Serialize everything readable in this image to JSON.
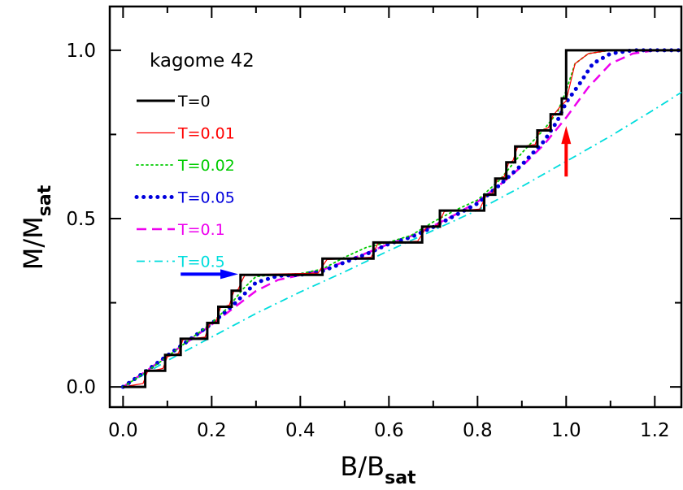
{
  "chart_data": {
    "type": "line",
    "annotation": "kagome 42",
    "xlabel": {
      "main": "B/B",
      "sub": "sat"
    },
    "ylabel": {
      "main": "M/M",
      "sub": "sat"
    },
    "xlim": [
      -0.03,
      1.26
    ],
    "ylim": [
      -0.06,
      1.13
    ],
    "xticks": [
      0.0,
      0.2,
      0.4,
      0.6,
      0.8,
      1.0,
      1.2
    ],
    "xticklabels": [
      "0.0",
      "0.2",
      "0.4",
      "0.6",
      "0.8",
      "1.0",
      "1.2"
    ],
    "yticks": [
      0.0,
      0.5,
      1.0
    ],
    "yticklabels": [
      "0.0",
      "0.5",
      "1.0"
    ],
    "legend_position": "top-left",
    "series": [
      {
        "name": "T=0",
        "color": "#000000",
        "style": "solid-thick",
        "x": [
          0.0,
          0.05,
          0.05,
          0.095,
          0.095,
          0.13,
          0.13,
          0.19,
          0.19,
          0.215,
          0.215,
          0.245,
          0.245,
          0.265,
          0.265,
          0.28,
          0.28,
          0.45,
          0.45,
          0.565,
          0.565,
          0.675,
          0.675,
          0.715,
          0.715,
          0.815,
          0.815,
          0.84,
          0.84,
          0.865,
          0.865,
          0.885,
          0.885,
          0.935,
          0.935,
          0.965,
          0.965,
          0.99,
          0.99,
          1.0,
          1.0,
          1.26
        ],
        "y": [
          0.0,
          0.0,
          0.048,
          0.048,
          0.095,
          0.095,
          0.143,
          0.143,
          0.19,
          0.19,
          0.238,
          0.238,
          0.286,
          0.286,
          0.333,
          0.333,
          0.333,
          0.333,
          0.381,
          0.381,
          0.429,
          0.429,
          0.476,
          0.476,
          0.524,
          0.524,
          0.571,
          0.571,
          0.619,
          0.619,
          0.667,
          0.667,
          0.714,
          0.714,
          0.762,
          0.762,
          0.81,
          0.81,
          0.857,
          0.857,
          1.0,
          1.0
        ]
      },
      {
        "name": "T=0.01",
        "color": "#ff0000",
        "style": "solid-thin",
        "x": [
          0.0,
          0.045,
          0.055,
          0.09,
          0.1,
          0.125,
          0.135,
          0.185,
          0.195,
          0.21,
          0.22,
          0.24,
          0.25,
          0.26,
          0.27,
          0.275,
          0.29,
          0.44,
          0.46,
          0.56,
          0.575,
          0.665,
          0.685,
          0.71,
          0.725,
          0.805,
          0.82,
          0.835,
          0.845,
          0.86,
          0.87,
          0.88,
          0.89,
          0.93,
          0.94,
          0.96,
          0.97,
          0.985,
          1.0,
          1.02,
          1.05,
          1.1,
          1.26
        ],
        "y": [
          0.0,
          0.01,
          0.045,
          0.055,
          0.09,
          0.1,
          0.14,
          0.148,
          0.186,
          0.195,
          0.236,
          0.243,
          0.284,
          0.29,
          0.32,
          0.332,
          0.334,
          0.338,
          0.378,
          0.385,
          0.426,
          0.433,
          0.474,
          0.48,
          0.521,
          0.528,
          0.57,
          0.576,
          0.618,
          0.624,
          0.665,
          0.672,
          0.712,
          0.72,
          0.76,
          0.77,
          0.805,
          0.83,
          0.85,
          0.96,
          0.99,
          1.0,
          1.0
        ]
      },
      {
        "name": "T=0.02",
        "color": "#00cc00",
        "style": "dotted",
        "x": [
          0.0,
          0.05,
          0.1,
          0.15,
          0.2,
          0.24,
          0.27,
          0.3,
          0.35,
          0.4,
          0.45,
          0.5,
          0.55,
          0.6,
          0.65,
          0.7,
          0.75,
          0.8,
          0.85,
          0.9,
          0.95,
          0.98,
          1.0,
          1.02,
          1.05,
          1.1,
          1.26
        ],
        "y": [
          0.0,
          0.042,
          0.09,
          0.14,
          0.19,
          0.24,
          0.29,
          0.328,
          0.334,
          0.336,
          0.35,
          0.385,
          0.415,
          0.43,
          0.45,
          0.49,
          0.525,
          0.555,
          0.615,
          0.695,
          0.765,
          0.815,
          0.88,
          0.96,
          0.99,
          1.0,
          1.0
        ]
      },
      {
        "name": "T=0.05",
        "color": "#0000dd",
        "style": "dotted-thick",
        "x": [
          0.0,
          0.05,
          0.1,
          0.15,
          0.2,
          0.25,
          0.3,
          0.35,
          0.4,
          0.45,
          0.5,
          0.55,
          0.6,
          0.65,
          0.7,
          0.75,
          0.8,
          0.85,
          0.9,
          0.95,
          0.98,
          1.0,
          1.03,
          1.06,
          1.1,
          1.15,
          1.26
        ],
        "y": [
          0.0,
          0.045,
          0.093,
          0.14,
          0.188,
          0.245,
          0.31,
          0.33,
          0.333,
          0.344,
          0.37,
          0.395,
          0.425,
          0.445,
          0.475,
          0.51,
          0.545,
          0.6,
          0.66,
          0.73,
          0.79,
          0.845,
          0.9,
          0.96,
          0.99,
          1.0,
          1.0
        ]
      },
      {
        "name": "T=0.1",
        "color": "#ee00ee",
        "style": "dashed",
        "x": [
          0.0,
          0.05,
          0.1,
          0.15,
          0.2,
          0.25,
          0.3,
          0.35,
          0.4,
          0.45,
          0.5,
          0.55,
          0.6,
          0.65,
          0.7,
          0.75,
          0.8,
          0.85,
          0.9,
          0.95,
          1.0,
          1.05,
          1.1,
          1.15,
          1.2,
          1.26
        ],
        "y": [
          0.0,
          0.045,
          0.092,
          0.138,
          0.185,
          0.235,
          0.285,
          0.318,
          0.332,
          0.348,
          0.372,
          0.398,
          0.425,
          0.448,
          0.478,
          0.512,
          0.55,
          0.6,
          0.655,
          0.72,
          0.8,
          0.89,
          0.96,
          0.99,
          1.0,
          1.0
        ]
      },
      {
        "name": "T=0.5",
        "color": "#00dddd",
        "style": "dash-dot",
        "x": [
          0.0,
          0.1,
          0.2,
          0.3,
          0.4,
          0.5,
          0.6,
          0.7,
          0.8,
          0.9,
          1.0,
          1.1,
          1.2,
          1.26
        ],
        "y": [
          0.0,
          0.078,
          0.148,
          0.218,
          0.282,
          0.342,
          0.405,
          0.465,
          0.525,
          0.595,
          0.67,
          0.745,
          0.825,
          0.875
        ]
      }
    ],
    "arrows": [
      {
        "color": "#0000ff",
        "direction": "right",
        "from": [
          0.13,
          0.335
        ],
        "to": [
          0.26,
          0.335
        ]
      },
      {
        "color": "#ff0000",
        "direction": "up",
        "from": [
          1.0,
          0.625
        ],
        "to": [
          1.0,
          0.775
        ]
      }
    ]
  }
}
